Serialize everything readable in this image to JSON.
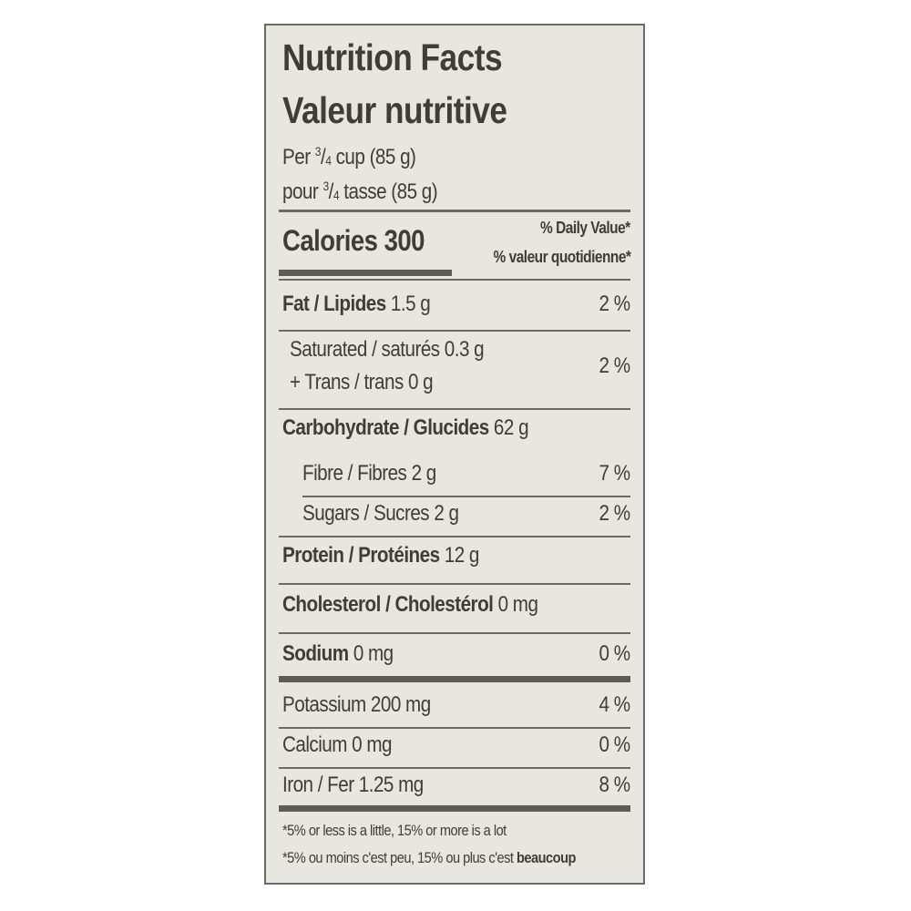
{
  "title_en": "Nutrition Facts",
  "title_fr": "Valeur nutritive",
  "serving": {
    "en_prefix": "Per",
    "en_suffix": "cup (85 g)",
    "fr_prefix": "pour",
    "fr_suffix": "tasse (85 g)",
    "frac_num": "3",
    "frac_den": "4"
  },
  "calories": "Calories 300",
  "dv_header_en": "% Daily Value*",
  "dv_header_fr": "% valeur quotidienne*",
  "nutrients": {
    "fat": {
      "label": "Fat / Lipides",
      "amount": "1.5 g",
      "dv": "2 %"
    },
    "saturated": {
      "label": "Saturated / saturés 0.3 g"
    },
    "trans": {
      "label": "+ Trans / trans 0 g"
    },
    "sat_trans_dv": "2 %",
    "carbohydrate": {
      "label": "Carbohydrate / Glucides",
      "amount": "62 g"
    },
    "fibre": {
      "label": "Fibre / Fibres 2 g",
      "dv": "7 %"
    },
    "sugars": {
      "label": "Sugars / Sucres 2 g",
      "dv": "2 %"
    },
    "protein": {
      "label": "Protein / Protéines",
      "amount": "12 g"
    },
    "cholesterol": {
      "label": "Cholesterol / Cholestérol",
      "amount": "0 mg"
    },
    "sodium": {
      "label": "Sodium",
      "amount": "0 mg",
      "dv": "0 %"
    },
    "potassium": {
      "label": "Potassium 200 mg",
      "dv": "4 %"
    },
    "calcium": {
      "label": "Calcium 0 mg",
      "dv": "0 %"
    },
    "iron": {
      "label": "Iron / Fer 1.25 mg",
      "dv": "8 %"
    }
  },
  "footnote_en": "*5% or less is a little, 15% or more is a lot",
  "footnote_fr_prefix": "*5% ou moins c'est peu, 15% ou plus c'est",
  "footnote_fr_emph": "beaucoup"
}
